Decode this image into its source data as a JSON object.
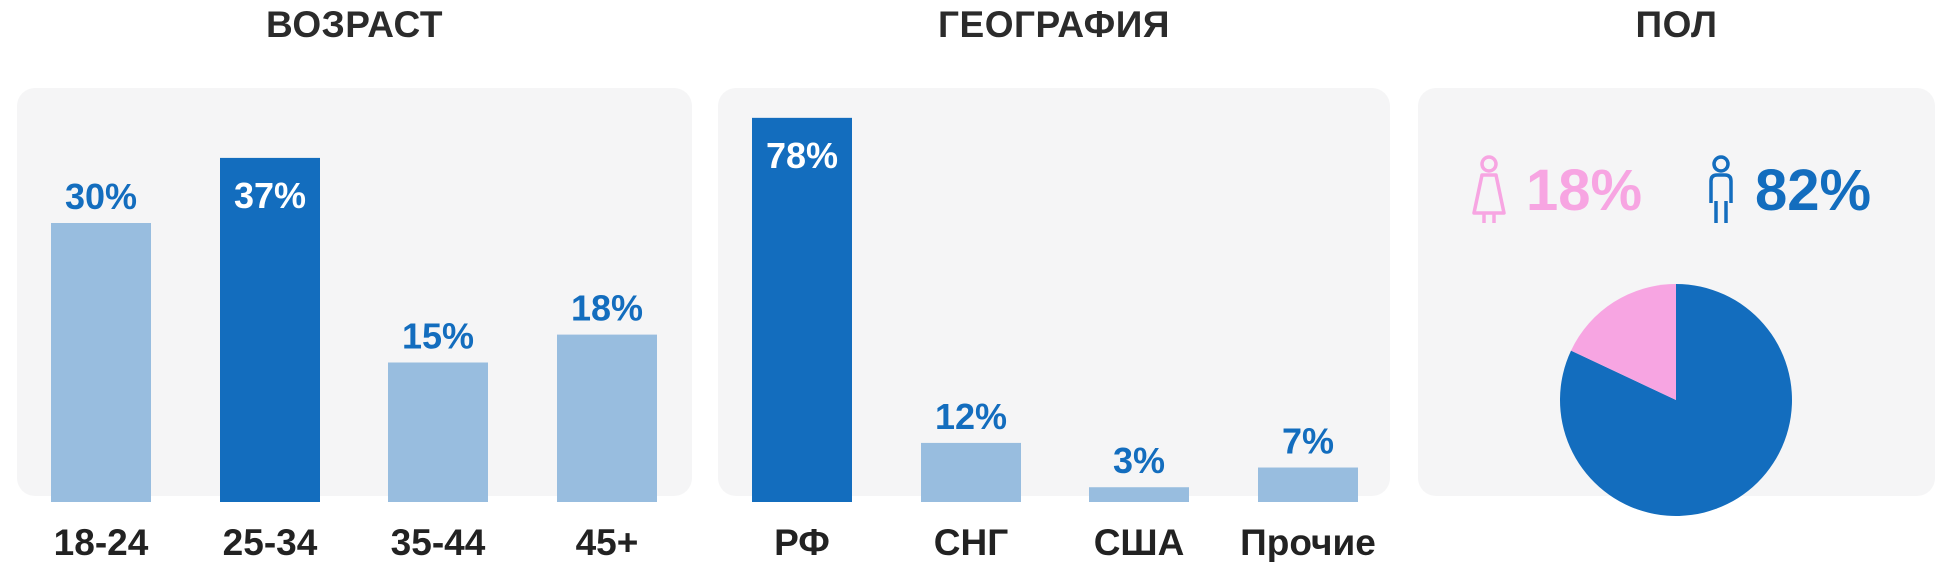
{
  "colors": {
    "bar_light": "#98bddf",
    "bar_dark": "#136dbe",
    "label_blue": "#136dbe",
    "female": "#f7a5e2",
    "male": "#136dbe"
  },
  "chart_data": [
    {
      "type": "bar",
      "title": "ВОЗРАСТ",
      "categories": [
        "18-24",
        "25-34",
        "35-44",
        "45+"
      ],
      "values": [
        30,
        37,
        15,
        18
      ],
      "value_labels": [
        "30%",
        "37%",
        "15%",
        "18%"
      ],
      "highlight_index": 1,
      "ylim": [
        0,
        40
      ]
    },
    {
      "type": "bar",
      "title": "ГЕОГРАФИЯ",
      "categories": [
        "РФ",
        "СНГ",
        "США",
        "Прочие"
      ],
      "values": [
        78,
        12,
        3,
        7
      ],
      "value_labels": [
        "78%",
        "12%",
        "3%",
        "7%"
      ],
      "highlight_index": 0,
      "ylim": [
        0,
        80
      ]
    },
    {
      "type": "pie",
      "title": "ПОЛ",
      "slices": [
        {
          "label": "18%",
          "value": 18,
          "icon": "female-icon",
          "color": "#f7a5e2"
        },
        {
          "label": "82%",
          "value": 82,
          "icon": "male-icon",
          "color": "#136dbe"
        }
      ]
    }
  ]
}
